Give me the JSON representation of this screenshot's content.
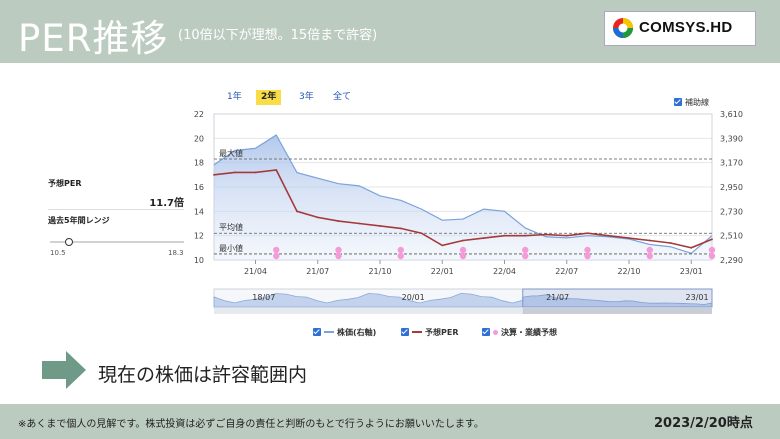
{
  "header": {
    "title": "PER推移",
    "subtitle": "(10倍以下が理想。15倍まで許容)",
    "logo": "COMSYS.HD"
  },
  "side_panel": {
    "forecast_per_label": "予想PER",
    "forecast_per_value": "11.7倍",
    "range_label": "過去5年間レンジ",
    "range_min": "10.5",
    "range_max": "18.3"
  },
  "chart_controls": {
    "tabs": [
      "1年",
      "2年",
      "3年",
      "全て"
    ],
    "active_tab": "2年",
    "helper_lines_label": "補助線",
    "helper_lines_checked": true
  },
  "chart_data": {
    "type": "line",
    "x": [
      "2021-02",
      "2021-03",
      "2021-04",
      "2021-05",
      "2021-06",
      "2021-07",
      "2021-08",
      "2021-09",
      "2021-10",
      "2021-11",
      "2021-12",
      "2022-01",
      "2022-02",
      "2022-03",
      "2022-04",
      "2022-05",
      "2022-06",
      "2022-07",
      "2022-08",
      "2022-09",
      "2022-10",
      "2022-11",
      "2022-12",
      "2023-01",
      "2023-02"
    ],
    "xticks": [
      "21/04",
      "21/07",
      "21/10",
      "22/01",
      "22/04",
      "22/07",
      "22/10",
      "23/01"
    ],
    "series": [
      {
        "name": "株価(右軸)",
        "axis": "right",
        "color": "#7aa2dc",
        "values": [
          3150,
          3280,
          3300,
          3420,
          3080,
          3030,
          2980,
          2960,
          2870,
          2830,
          2750,
          2650,
          2660,
          2750,
          2730,
          2580,
          2500,
          2490,
          2510,
          2500,
          2480,
          2430,
          2410,
          2350,
          2510
        ]
      },
      {
        "name": "予想PER",
        "axis": "left",
        "color": "#a43a3a",
        "values": [
          17.0,
          17.2,
          17.2,
          17.4,
          14.0,
          13.5,
          13.2,
          13.0,
          12.8,
          12.6,
          12.2,
          11.2,
          11.6,
          11.8,
          12.0,
          12.0,
          12.1,
          12.0,
          12.2,
          12.0,
          11.8,
          11.6,
          11.4,
          11.0,
          11.7
        ]
      }
    ],
    "earnings_markers": [
      "2021-05",
      "2021-08",
      "2021-11",
      "2022-02",
      "2022-05",
      "2022-08",
      "2022-11",
      "2023-02"
    ],
    "earnings_label": "決算・業績予想",
    "y_left": {
      "ticks": [
        22,
        20,
        18,
        16,
        14,
        12,
        10
      ],
      "range": [
        10,
        22
      ]
    },
    "y_right": {
      "ticks": [
        "3,610",
        "3,390",
        "3,170",
        "2,950",
        "2,730",
        "2,510",
        "2,290"
      ],
      "range": [
        2290,
        3610
      ]
    },
    "reference_lines": [
      {
        "label": "最大値",
        "value": 18.3
      },
      {
        "label": "平均値",
        "value": 12.2
      },
      {
        "label": "最小値",
        "value": 10.5
      }
    ],
    "navigator_ticks": [
      "18/07",
      "20/01",
      "21/07",
      "23/01"
    ],
    "grid": true,
    "legend_position": "bottom"
  },
  "footer": {
    "status_text": "現在の株価は許容範囲内",
    "disclaimer": "※あくまで個人の見解です。株式投資は必ずご自身の責任と判断のもとで行うようにお願いいたします。",
    "date": "2023/2/20時点"
  },
  "colors": {
    "header_bg": "#bccbc0",
    "price_line": "#7aa2dc",
    "per_line": "#a43a3a",
    "earnings_marker": "#f49ad8",
    "arrow": "#6f9a88",
    "active_tab": "#f8dd47"
  }
}
